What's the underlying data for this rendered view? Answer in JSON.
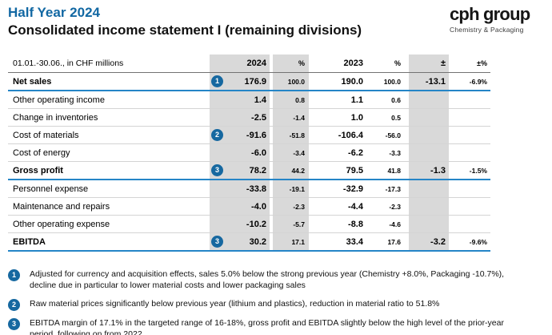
{
  "header": {
    "pretitle": "Half Year 2024",
    "title": "Consolidated income statement I (remaining divisions)",
    "logo": {
      "wordmark": "cph group",
      "tagline": "Chemistry & Packaging"
    }
  },
  "colors": {
    "accent_blue": "#1268a3",
    "badge_blue": "#1668a0",
    "rule_blue": "#2585c7",
    "band_gray": "#d9d9d9"
  },
  "table": {
    "header": {
      "label": "01.01.-30.06., in CHF millions",
      "v2024": "2024",
      "p2024": "%",
      "v2023": "2023",
      "p2023": "%",
      "delta": "±",
      "deltaPct": "±%"
    },
    "rows": [
      {
        "label": "Net sales",
        "badge": "1",
        "bold": true,
        "rule": "blue",
        "v2024": "176.9",
        "p2024": "100.0",
        "v2023": "190.0",
        "p2023": "100.0",
        "delta": "-13.1",
        "deltaPct": "-6.9%"
      },
      {
        "label": "Other operating income",
        "v2024": "1.4",
        "p2024": "0.8",
        "v2023": "1.1",
        "p2023": "0.6",
        "delta": "",
        "deltaPct": ""
      },
      {
        "label": "Change in inventories",
        "v2024": "-2.5",
        "p2024": "-1.4",
        "v2023": "1.0",
        "p2023": "0.5",
        "delta": "",
        "deltaPct": ""
      },
      {
        "label": "Cost of materials",
        "badge": "2",
        "v2024": "-91.6",
        "p2024": "-51.8",
        "v2023": "-106.4",
        "p2023": "-56.0",
        "delta": "",
        "deltaPct": ""
      },
      {
        "label": "Cost of energy",
        "v2024": "-6.0",
        "p2024": "-3.4",
        "v2023": "-6.2",
        "p2023": "-3.3",
        "delta": "",
        "deltaPct": ""
      },
      {
        "label": "Gross profit",
        "badge": "3",
        "bold": true,
        "rule": "blue",
        "v2024": "78.2",
        "p2024": "44.2",
        "v2023": "79.5",
        "p2023": "41.8",
        "delta": "-1.3",
        "deltaPct": "-1.5%"
      },
      {
        "label": "Personnel expense",
        "v2024": "-33.8",
        "p2024": "-19.1",
        "v2023": "-32.9",
        "p2023": "-17.3",
        "delta": "",
        "deltaPct": ""
      },
      {
        "label": "Maintenance and repairs",
        "v2024": "-4.0",
        "p2024": "-2.3",
        "v2023": "-4.4",
        "p2023": "-2.3",
        "delta": "",
        "deltaPct": ""
      },
      {
        "label": "Other operating expense",
        "v2024": "-10.2",
        "p2024": "-5.7",
        "v2023": "-8.8",
        "p2023": "-4.6",
        "delta": "",
        "deltaPct": ""
      },
      {
        "label": "EBITDA",
        "badge": "3",
        "bold": true,
        "rule": "blue",
        "v2024": "30.2",
        "p2024": "17.1",
        "v2023": "33.4",
        "p2023": "17.6",
        "delta": "-3.2",
        "deltaPct": "-9.6%"
      }
    ]
  },
  "footnotes": [
    {
      "badge": "1",
      "text": "Adjusted for currency and acquisition effects, sales 5.0% below the strong previous year (Chemistry +8.0%, Packaging -10.7%), decline due in particular to lower material costs and lower packaging sales"
    },
    {
      "badge": "2",
      "text": "Raw material prices significantly below previous year (lithium and plastics), reduction in material ratio to 51.8%"
    },
    {
      "badge": "3",
      "text": "EBITDA margin of 17.1% in the targeted range of 16-18%, gross profit and EBITDA slightly below the high level of the prior-year period, following on from 2022"
    }
  ]
}
